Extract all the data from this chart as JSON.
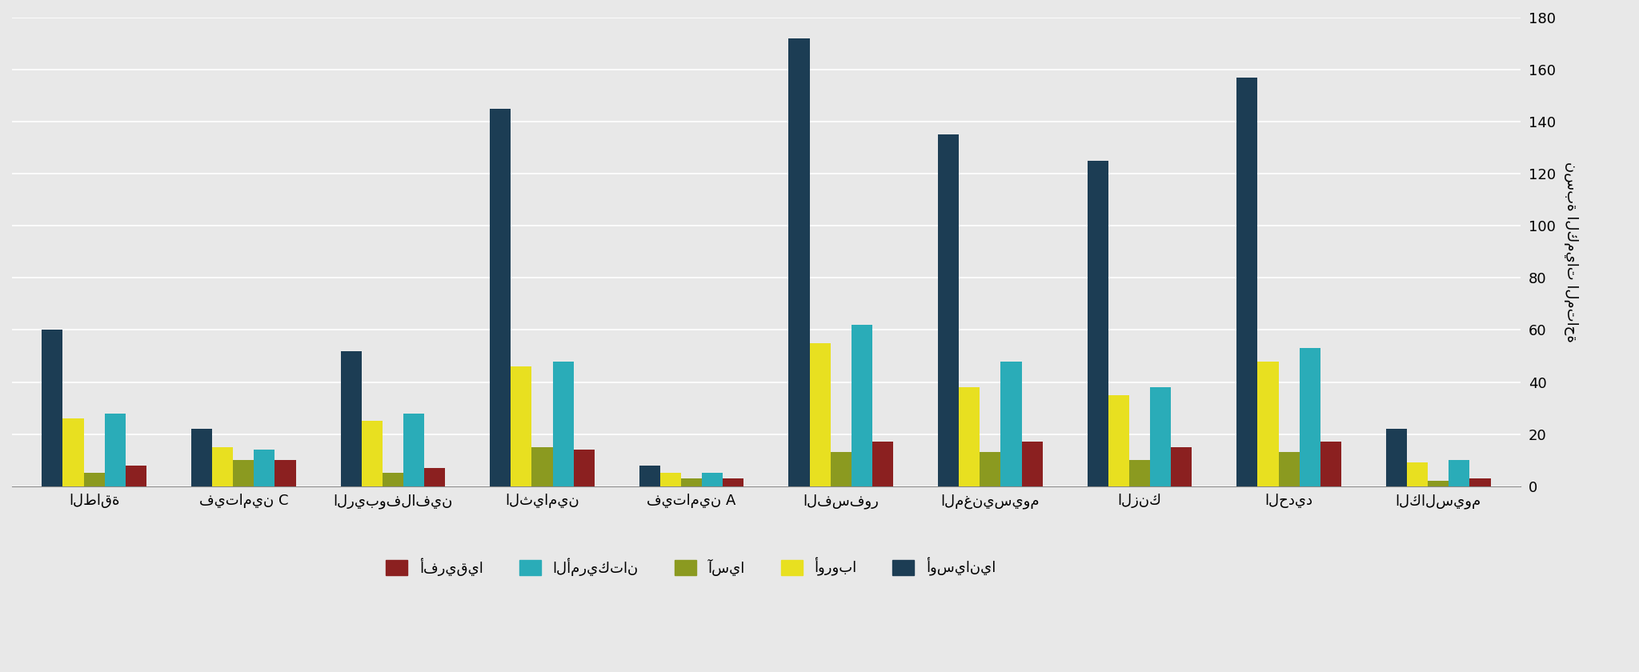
{
  "categories": [
    "الطاقة",
    "فيتامين C",
    "الريبوفلافين",
    "الثيامين",
    "فيتامين A",
    "الفسفور",
    "المغنيسيوم",
    "الزنك",
    "الحديد",
    "الكالسيوم"
  ],
  "series_order": [
    "أوسيانيا",
    "أوروبا",
    "آسيا",
    "الأمريكتان",
    "أفريقيا"
  ],
  "series": {
    "أوسيانيا": [
      60,
      22,
      52,
      145,
      8,
      172,
      135,
      125,
      157,
      22
    ],
    "أوروبا": [
      26,
      15,
      25,
      46,
      5,
      55,
      38,
      35,
      48,
      9
    ],
    "آسيا": [
      5,
      10,
      5,
      15,
      3,
      13,
      13,
      10,
      13,
      2
    ],
    "الأمريكتان": [
      28,
      14,
      28,
      48,
      5,
      62,
      48,
      38,
      53,
      10
    ],
    "أفريقيا": [
      8,
      10,
      7,
      14,
      3,
      17,
      17,
      15,
      17,
      3
    ]
  },
  "colors": {
    "أوسيانيا": "#1c3d54",
    "أوروبا": "#e8e020",
    "آسيا": "#8b9a20",
    "الأمريكتان": "#2aacb8",
    "أفريقيا": "#8b2020"
  },
  "ylim": [
    0,
    180
  ],
  "yticks": [
    0,
    20,
    40,
    60,
    80,
    100,
    120,
    140,
    160,
    180
  ],
  "ylabel": "نسبة الكميات المتاحة",
  "background_color": "#e8e8e8",
  "bar_width": 0.14,
  "tick_fontsize": 13,
  "label_fontsize": 13,
  "legend_fontsize": 13
}
